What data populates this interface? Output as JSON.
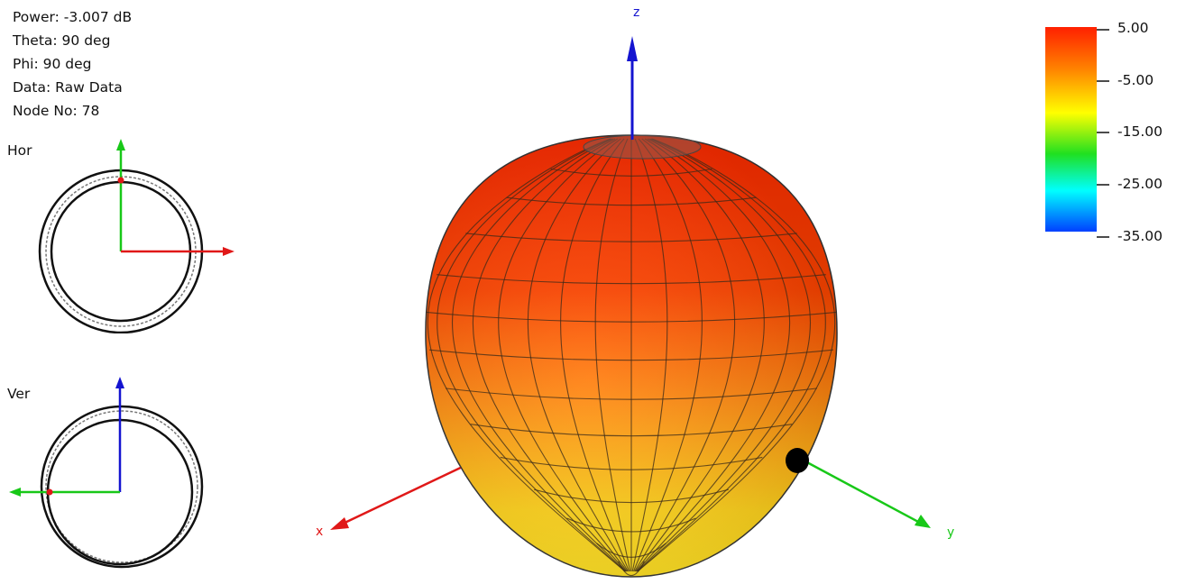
{
  "info": {
    "power": "Power: -3.007 dB",
    "theta": "Theta: 90 deg",
    "phi": "Phi: 90 deg",
    "data": "Data: Raw Data",
    "node": "Node No: 78"
  },
  "views": {
    "horizontal": "Hor",
    "vertical": "Ver"
  },
  "axes": {
    "x": "x",
    "y": "y",
    "z": "z"
  },
  "colors": {
    "x_axis": "#e01818",
    "y_axis": "#18c818",
    "z_axis": "#1414d0"
  },
  "colorbar": {
    "ticks": [
      "5.00",
      "-5.00",
      "-15.00",
      "-25.00",
      "-35.00"
    ],
    "colors": [
      "#ff2a00",
      "#ff7a00",
      "#ffff00",
      "#2cdc2c",
      "#00ffff",
      "#0040ff"
    ]
  }
}
